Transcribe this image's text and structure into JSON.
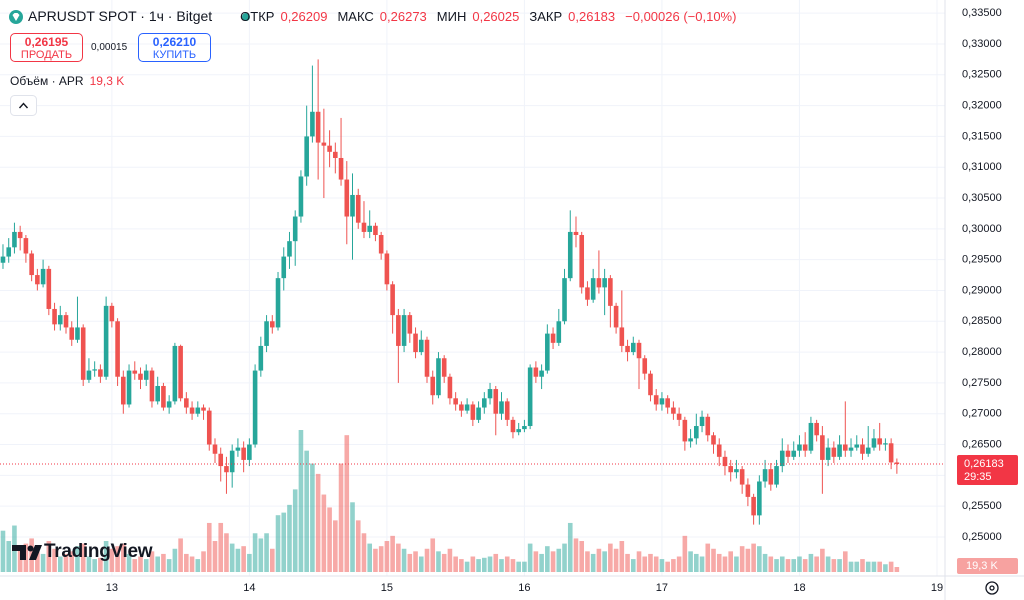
{
  "chart_data": {
    "type": "candlestick",
    "title": "APRUSDT SPOT · 1ч · Bitget",
    "legend": {
      "labels": [
        "ОТКР",
        "МАКС",
        "МИН",
        "ЗАКР"
      ],
      "values": [
        "0,26209",
        "0,26273",
        "0,26025",
        "0,26183"
      ],
      "change": "−0,00026 (−0,10%)"
    },
    "trade": {
      "sell_price": "0,26195",
      "sell": "ПРОДАТЬ",
      "spread": "0,00015",
      "buy_price": "0,26210",
      "buy": "КУПИТЬ"
    },
    "logo": "TradingView",
    "up_color": "#26a69a",
    "down_color": "#ef5350",
    "xlim": [
      -0.52,
      164.4
    ],
    "xticks": [
      {
        "value": 19,
        "label": "13"
      },
      {
        "value": 43,
        "label": "14"
      },
      {
        "value": 67,
        "label": "15"
      },
      {
        "value": 91,
        "label": "16"
      },
      {
        "value": 115,
        "label": "17"
      },
      {
        "value": 139,
        "label": "18"
      },
      {
        "value": 163,
        "label": "19"
      }
    ],
    "ylim": [
      0.24431,
      0.33714
    ],
    "yticks": [
      {
        "value": 0.335,
        "label": "0,33500"
      },
      {
        "value": 0.33,
        "label": "0,33000"
      },
      {
        "value": 0.325,
        "label": "0,32500"
      },
      {
        "value": 0.32,
        "label": "0,32000"
      },
      {
        "value": 0.315,
        "label": "0,31500"
      },
      {
        "value": 0.31,
        "label": "0,31000"
      },
      {
        "value": 0.305,
        "label": "0,30500"
      },
      {
        "value": 0.3,
        "label": "0,30000"
      },
      {
        "value": 0.295,
        "label": "0,29500"
      },
      {
        "value": 0.29,
        "label": "0,29000"
      },
      {
        "value": 0.285,
        "label": "0,28500"
      },
      {
        "value": 0.28,
        "label": "0,28000"
      },
      {
        "value": 0.275,
        "label": "0,27500"
      },
      {
        "value": 0.27,
        "label": "0,27000"
      },
      {
        "value": 0.265,
        "label": "0,26500"
      },
      {
        "value": 0.26,
        "label": "0,26000"
      },
      {
        "value": 0.255,
        "label": "0,25500"
      },
      {
        "value": 0.25,
        "label": "0,25000"
      }
    ],
    "grid": true,
    "last_price": {
      "value": 0.26183,
      "label": "0,26183",
      "countdown": "29:35"
    },
    "open": [
      0.2945,
      0.2955,
      0.297,
      0.2995,
      0.2985,
      0.296,
      0.2925,
      0.291,
      0.2935,
      0.287,
      0.2845,
      0.286,
      0.284,
      0.282,
      0.284,
      0.2755,
      0.277,
      0.2772,
      0.276,
      0.2875,
      0.285,
      0.276,
      0.2715,
      0.277,
      0.2765,
      0.2755,
      0.277,
      0.272,
      0.2745,
      0.271,
      0.272,
      0.281,
      0.2725,
      0.271,
      0.27,
      0.271,
      0.2705,
      0.265,
      0.2635,
      0.2615,
      0.2605,
      0.264,
      0.2645,
      0.2625,
      0.265,
      0.277,
      0.281,
      0.285,
      0.284,
      0.292,
      0.2955,
      0.298,
      0.302,
      0.3085,
      0.315,
      0.319,
      0.314,
      0.3135,
      0.3125,
      0.3115,
      0.308,
      0.302,
      0.3055,
      0.301,
      0.2995,
      0.3005,
      0.299,
      0.296,
      0.291,
      0.286,
      0.281,
      0.286,
      0.283,
      0.28,
      0.282,
      0.276,
      0.273,
      0.279,
      0.276,
      0.2725,
      0.2715,
      0.2705,
      0.2715,
      0.269,
      0.271,
      0.2725,
      0.274,
      0.27,
      0.272,
      0.269,
      0.267,
      0.2675,
      0.268,
      0.2775,
      0.276,
      0.277,
      0.283,
      0.2815,
      0.285,
      0.292,
      0.2995,
      0.299,
      0.2905,
      0.2885,
      0.292,
      0.2905,
      0.292,
      0.2875,
      0.284,
      0.281,
      0.28,
      0.2815,
      0.279,
      0.2765,
      0.273,
      0.2715,
      0.2725,
      0.271,
      0.27,
      0.269,
      0.2655,
      0.266,
      0.268,
      0.2695,
      0.2665,
      0.265,
      0.263,
      0.2615,
      0.2605,
      0.261,
      0.2585,
      0.2565,
      0.2535,
      0.259,
      0.261,
      0.2585,
      0.2615,
      0.264,
      0.263,
      0.264,
      0.265,
      0.264,
      0.2685,
      0.2665,
      0.2625,
      0.2645,
      0.263,
      0.265,
      0.264,
      0.2645,
      0.265,
      0.2635,
      0.2645,
      0.266,
      0.265,
      0.2652,
      0.26209
    ],
    "high": [
      0.2975,
      0.2985,
      0.301,
      0.3005,
      0.299,
      0.2965,
      0.2935,
      0.295,
      0.294,
      0.288,
      0.2875,
      0.2865,
      0.285,
      0.289,
      0.2845,
      0.279,
      0.2785,
      0.278,
      0.289,
      0.288,
      0.2855,
      0.277,
      0.278,
      0.2785,
      0.2775,
      0.278,
      0.2775,
      0.276,
      0.275,
      0.273,
      0.2815,
      0.2812,
      0.2735,
      0.272,
      0.272,
      0.2715,
      0.271,
      0.266,
      0.2645,
      0.263,
      0.265,
      0.266,
      0.2655,
      0.266,
      0.278,
      0.2825,
      0.286,
      0.286,
      0.293,
      0.297,
      0.2995,
      0.303,
      0.3095,
      0.32,
      0.3265,
      0.3275,
      0.3195,
      0.316,
      0.314,
      0.318,
      0.311,
      0.309,
      0.3065,
      0.3045,
      0.303,
      0.301,
      0.2995,
      0.2965,
      0.2915,
      0.287,
      0.287,
      0.2865,
      0.284,
      0.2835,
      0.2825,
      0.277,
      0.28,
      0.2795,
      0.2765,
      0.2735,
      0.272,
      0.2725,
      0.272,
      0.272,
      0.2735,
      0.275,
      0.2745,
      0.2735,
      0.2725,
      0.2695,
      0.2685,
      0.269,
      0.278,
      0.2785,
      0.278,
      0.2845,
      0.284,
      0.287,
      0.2935,
      0.303,
      0.302,
      0.2995,
      0.2915,
      0.2935,
      0.2965,
      0.2935,
      0.2925,
      0.288,
      0.29,
      0.282,
      0.2825,
      0.282,
      0.2795,
      0.277,
      0.274,
      0.2735,
      0.273,
      0.272,
      0.271,
      0.2695,
      0.2675,
      0.27,
      0.2705,
      0.27,
      0.267,
      0.266,
      0.264,
      0.2625,
      0.2625,
      0.2615,
      0.2595,
      0.257,
      0.26,
      0.2625,
      0.262,
      0.2625,
      0.266,
      0.265,
      0.2655,
      0.2665,
      0.267,
      0.2695,
      0.269,
      0.268,
      0.266,
      0.2655,
      0.2665,
      0.272,
      0.266,
      0.2665,
      0.266,
      0.268,
      0.2675,
      0.2685,
      0.266,
      0.266,
      0.26273
    ],
    "low": [
      0.2935,
      0.2945,
      0.296,
      0.2965,
      0.2945,
      0.2915,
      0.29,
      0.2905,
      0.286,
      0.2835,
      0.2835,
      0.283,
      0.281,
      0.2815,
      0.2745,
      0.275,
      0.276,
      0.275,
      0.2755,
      0.284,
      0.2745,
      0.27,
      0.271,
      0.2755,
      0.274,
      0.2745,
      0.271,
      0.2715,
      0.2705,
      0.27,
      0.2715,
      0.272,
      0.27,
      0.269,
      0.2695,
      0.269,
      0.264,
      0.262,
      0.259,
      0.257,
      0.258,
      0.263,
      0.2605,
      0.2615,
      0.2645,
      0.276,
      0.28,
      0.283,
      0.2835,
      0.29,
      0.2935,
      0.294,
      0.301,
      0.307,
      0.314,
      0.308,
      0.305,
      0.31,
      0.309,
      0.307,
      0.2975,
      0.295,
      0.3,
      0.2985,
      0.2985,
      0.298,
      0.295,
      0.29,
      0.283,
      0.275,
      0.28,
      0.2815,
      0.279,
      0.2795,
      0.275,
      0.2715,
      0.2725,
      0.275,
      0.2715,
      0.2705,
      0.2695,
      0.27,
      0.268,
      0.2685,
      0.27,
      0.2715,
      0.2665,
      0.269,
      0.268,
      0.266,
      0.2665,
      0.267,
      0.2675,
      0.275,
      0.274,
      0.2765,
      0.2805,
      0.281,
      0.2845,
      0.2915,
      0.297,
      0.2895,
      0.2875,
      0.288,
      0.2895,
      0.286,
      0.284,
      0.283,
      0.28,
      0.2785,
      0.2795,
      0.274,
      0.2755,
      0.272,
      0.2705,
      0.2705,
      0.27,
      0.269,
      0.268,
      0.264,
      0.2645,
      0.265,
      0.267,
      0.2655,
      0.2635,
      0.2615,
      0.26,
      0.259,
      0.2595,
      0.257,
      0.255,
      0.252,
      0.252,
      0.258,
      0.2575,
      0.258,
      0.2605,
      0.262,
      0.2625,
      0.263,
      0.263,
      0.2635,
      0.2655,
      0.257,
      0.2615,
      0.262,
      0.2625,
      0.263,
      0.263,
      0.264,
      0.2625,
      0.263,
      0.264,
      0.264,
      0.264,
      0.261,
      0.26025
    ],
    "close": [
      0.2955,
      0.297,
      0.2995,
      0.2985,
      0.296,
      0.2925,
      0.291,
      0.2935,
      0.287,
      0.2845,
      0.286,
      0.284,
      0.282,
      0.284,
      0.2755,
      0.277,
      0.2772,
      0.276,
      0.2875,
      0.285,
      0.276,
      0.2715,
      0.277,
      0.2765,
      0.2755,
      0.277,
      0.272,
      0.2745,
      0.271,
      0.272,
      0.281,
      0.2725,
      0.271,
      0.27,
      0.271,
      0.2705,
      0.265,
      0.2635,
      0.2615,
      0.2605,
      0.264,
      0.2645,
      0.2625,
      0.265,
      0.277,
      0.281,
      0.285,
      0.284,
      0.292,
      0.2955,
      0.298,
      0.302,
      0.3085,
      0.315,
      0.319,
      0.314,
      0.3135,
      0.3125,
      0.3115,
      0.308,
      0.302,
      0.3055,
      0.301,
      0.2995,
      0.3005,
      0.299,
      0.296,
      0.291,
      0.286,
      0.281,
      0.286,
      0.283,
      0.28,
      0.282,
      0.276,
      0.273,
      0.279,
      0.276,
      0.2725,
      0.2715,
      0.2705,
      0.2715,
      0.269,
      0.271,
      0.2725,
      0.274,
      0.27,
      0.272,
      0.269,
      0.267,
      0.2675,
      0.268,
      0.2775,
      0.276,
      0.277,
      0.283,
      0.2815,
      0.285,
      0.292,
      0.2995,
      0.299,
      0.2905,
      0.2885,
      0.292,
      0.2905,
      0.292,
      0.2875,
      0.284,
      0.281,
      0.28,
      0.2815,
      0.279,
      0.2765,
      0.273,
      0.2715,
      0.2725,
      0.271,
      0.27,
      0.269,
      0.2655,
      0.266,
      0.268,
      0.2695,
      0.2665,
      0.265,
      0.263,
      0.2615,
      0.2605,
      0.261,
      0.2585,
      0.2565,
      0.2535,
      0.259,
      0.261,
      0.2585,
      0.2615,
      0.264,
      0.263,
      0.264,
      0.265,
      0.264,
      0.2685,
      0.2665,
      0.2625,
      0.2645,
      0.263,
      0.265,
      0.264,
      0.2645,
      0.265,
      0.2635,
      0.2645,
      0.266,
      0.265,
      0.2652,
      0.26209,
      0.26183
    ],
    "volume": {
      "name": "Объём · APR",
      "last_label": "19,3 K",
      "values": [
        160,
        120,
        180,
        90,
        110,
        130,
        80,
        70,
        120,
        90,
        60,
        70,
        80,
        100,
        110,
        60,
        50,
        55,
        120,
        90,
        100,
        110,
        70,
        50,
        60,
        50,
        80,
        60,
        70,
        50,
        90,
        130,
        70,
        60,
        50,
        80,
        190,
        120,
        190,
        150,
        110,
        90,
        100,
        70,
        150,
        130,
        150,
        90,
        220,
        230,
        260,
        320,
        550,
        470,
        420,
        380,
        300,
        250,
        200,
        420,
        530,
        270,
        200,
        150,
        110,
        90,
        100,
        120,
        140,
        110,
        90,
        70,
        80,
        60,
        90,
        130,
        80,
        70,
        90,
        60,
        50,
        40,
        60,
        50,
        55,
        60,
        70,
        50,
        60,
        50,
        40,
        40,
        110,
        80,
        70,
        100,
        80,
        90,
        110,
        190,
        130,
        120,
        80,
        70,
        90,
        80,
        110,
        90,
        120,
        70,
        50,
        80,
        60,
        70,
        60,
        50,
        40,
        50,
        60,
        140,
        80,
        70,
        60,
        110,
        90,
        70,
        60,
        80,
        60,
        100,
        90,
        110,
        100,
        70,
        60,
        50,
        60,
        50,
        50,
        60,
        50,
        70,
        60,
        90,
        60,
        50,
        50,
        80,
        40,
        40,
        50,
        40,
        40,
        40,
        30,
        40,
        19.3
      ]
    }
  }
}
